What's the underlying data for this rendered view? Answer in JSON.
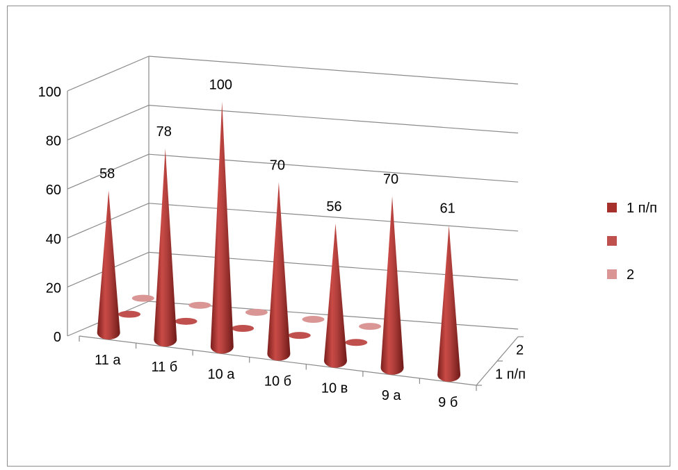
{
  "chart_data": {
    "type": "bar",
    "title": "",
    "xlabel": "",
    "ylabel": "",
    "ylim": [
      0,
      100
    ],
    "yticks": [
      0,
      20,
      40,
      60,
      80,
      100
    ],
    "categories": [
      "11 а",
      "11 б",
      "10 а",
      "10 б",
      "10 в",
      "9 а",
      "9 б"
    ],
    "depth_categories": [
      "1 п/п",
      "2"
    ],
    "series": [
      {
        "name": "1 п/п",
        "color": "#a5302c",
        "values": [
          58,
          78,
          100,
          70,
          56,
          70,
          61
        ]
      },
      {
        "name": "",
        "color": "#c0504d",
        "values": [
          0,
          0,
          0,
          0,
          0,
          null,
          null
        ]
      },
      {
        "name": "2",
        "color": "#d99694",
        "values": [
          0,
          0,
          0,
          0,
          0,
          null,
          null
        ]
      }
    ],
    "data_labels": [
      "58",
      "78",
      "100",
      "70",
      "56",
      "70",
      "61"
    ],
    "legend_position": "right",
    "grid": true,
    "style": "3d-cone"
  }
}
